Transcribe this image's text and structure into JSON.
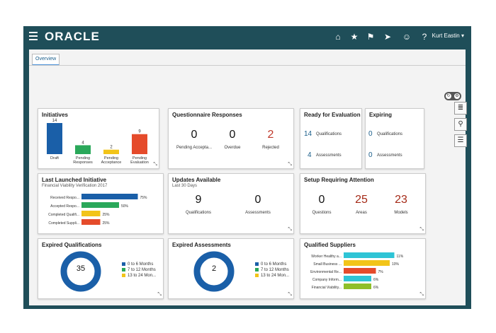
{
  "header": {
    "logo": "ORACLE",
    "user": "Kurt Eastin ▾",
    "icons": [
      "home-icon",
      "star-icon",
      "flag-icon",
      "navigator-icon",
      "accessibility-icon",
      "help-icon"
    ]
  },
  "tabs": [
    {
      "label": "Overview"
    }
  ],
  "cards": {
    "initiatives": {
      "title": "Initiatives",
      "chart_data": {
        "type": "bar",
        "categories": [
          "Draft",
          "Pending Responses",
          "Pending Acceptance",
          "Pending Evaluation"
        ],
        "values": [
          14,
          4,
          2,
          9
        ],
        "colors": [
          "#1a5fa8",
          "#2aa85a",
          "#f2c419",
          "#e54b2b"
        ]
      }
    },
    "questionnaire": {
      "title": "Questionnaire Responses",
      "items": [
        {
          "value": "0",
          "label": "Pending Accepta..."
        },
        {
          "value": "0",
          "label": "Overdue"
        },
        {
          "value": "2",
          "label": "Rejected"
        }
      ]
    },
    "ready": {
      "title": "Ready for Evaluation",
      "items": [
        {
          "value": "14",
          "label": "Qualifications"
        },
        {
          "value": "4",
          "label": "Assessments"
        }
      ]
    },
    "expiring": {
      "title": "Expiring",
      "items": [
        {
          "value": "0",
          "label": "Qualifications"
        },
        {
          "value": "0",
          "label": "Assessments"
        }
      ]
    },
    "last_launched": {
      "title": "Last Launched Initiative",
      "subtitle": "Financial Viability Verification 2017",
      "chart_data": {
        "type": "bar",
        "categories": [
          "Received Respo...",
          "Accepted Respo...",
          "Completed Qualifi...",
          "Completed Suppli..."
        ],
        "values": [
          75,
          50,
          25,
          25
        ],
        "value_labels": [
          "75%",
          "50%",
          "25%",
          "25%"
        ],
        "colors": [
          "#1a5fa8",
          "#2aa85a",
          "#f2c419",
          "#e54b2b"
        ]
      }
    },
    "updates": {
      "title": "Updates Available",
      "subtitle": "Last 30 Days",
      "items": [
        {
          "value": "9",
          "label": "Qualifications"
        },
        {
          "value": "0",
          "label": "Assessments"
        }
      ]
    },
    "setup": {
      "title": "Setup Requiring Attention",
      "items": [
        {
          "value": "0",
          "label": "Questions"
        },
        {
          "value": "25",
          "label": "Areas"
        },
        {
          "value": "23",
          "label": "Models"
        }
      ]
    },
    "expired_q": {
      "title": "Expired Qualifications",
      "center": "35",
      "legend": [
        "0 to 6 Months",
        "7 to 12 Months",
        "13 to 24 Mon..."
      ],
      "legend_colors": [
        "#1a5fa8",
        "#2aa85a",
        "#f2c419"
      ]
    },
    "expired_a": {
      "title": "Expired Assessments",
      "center": "2",
      "legend": [
        "0 to 6 Months",
        "7 to 12 Months",
        "13 to 24 Mon..."
      ],
      "legend_colors": [
        "#1a5fa8",
        "#2aa85a",
        "#f2c419"
      ]
    },
    "qualified": {
      "title": "Qualified Suppliers",
      "chart_data": {
        "type": "bar",
        "categories": [
          "Worker Healthy a...",
          "Small Business ...",
          "Environmental Re...",
          "Company Inform...",
          "Financial Viability..."
        ],
        "values": [
          11,
          10,
          7,
          6,
          6
        ],
        "value_labels": [
          "11%",
          "10%",
          "7%",
          "6%",
          "6%"
        ],
        "colors": [
          "#2ec4d6",
          "#f2c419",
          "#e54b2b",
          "#2ec4d6",
          "#8fbf2a"
        ]
      }
    }
  }
}
